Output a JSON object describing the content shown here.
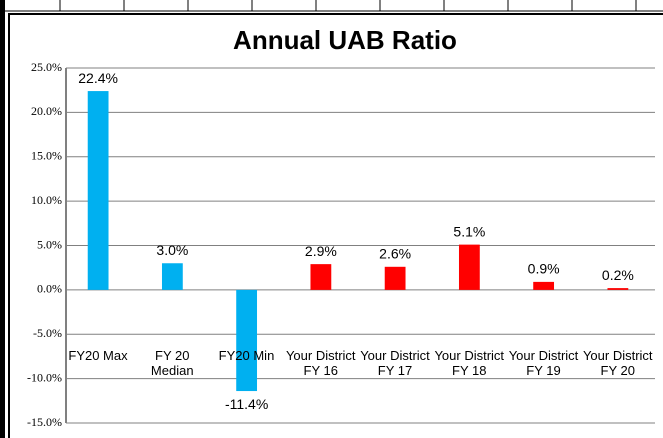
{
  "chart_data": {
    "type": "bar",
    "title": "Annual UAB Ratio",
    "categories": [
      "FY20 Max",
      "FY 20 Median",
      "FY20 Min",
      "Your District FY 16",
      "Your District FY 17",
      "Your District FY 18",
      "Your District FY 19",
      "Your District FY 20"
    ],
    "values": [
      22.4,
      3.0,
      -11.4,
      2.9,
      2.6,
      5.1,
      0.9,
      0.2
    ],
    "value_labels": [
      "22.4%",
      "3.0%",
      "-11.4%",
      "2.9%",
      "2.6%",
      "5.1%",
      "0.9%",
      "0.2%"
    ],
    "colors": [
      "#00b0f0",
      "#00b0f0",
      "#00b0f0",
      "#ff0000",
      "#ff0000",
      "#ff0000",
      "#ff0000",
      "#ff0000"
    ],
    "ylim": [
      -15,
      25
    ],
    "yticks": [
      {
        "value": -15,
        "label": "-15.0%"
      },
      {
        "value": -10,
        "label": "-10.0%"
      },
      {
        "value": -5,
        "label": "-5.0%"
      },
      {
        "value": 0,
        "label": "0.0%"
      },
      {
        "value": 5,
        "label": "5.0%"
      },
      {
        "value": 10,
        "label": "10.0%"
      },
      {
        "value": 15,
        "label": "15.0%"
      },
      {
        "value": 20,
        "label": "20.0%"
      },
      {
        "value": 25,
        "label": "25.0%"
      }
    ],
    "grid": true
  }
}
